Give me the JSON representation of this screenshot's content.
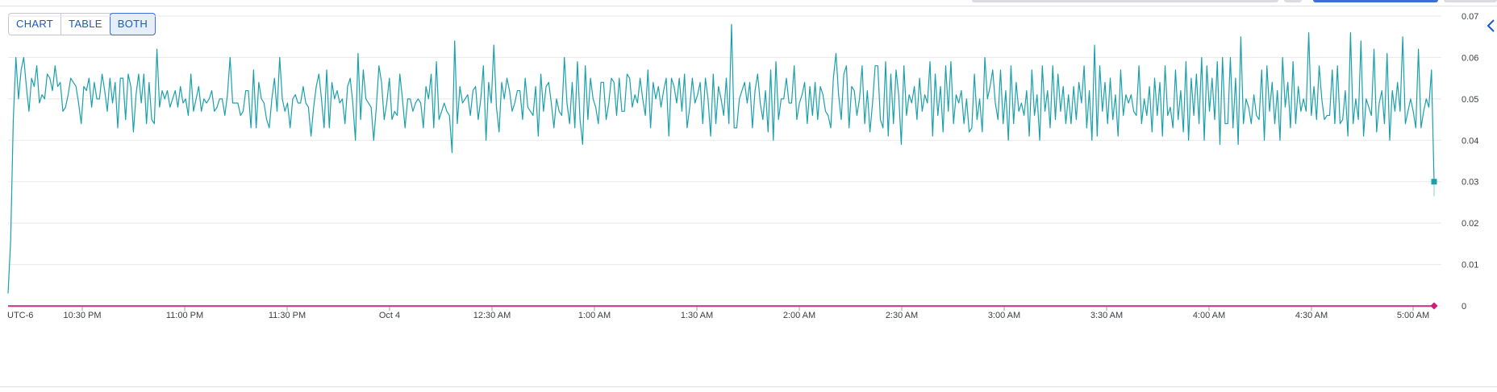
{
  "view_toggle": {
    "options": [
      "CHART",
      "TABLE",
      "BOTH"
    ],
    "selected": "BOTH"
  },
  "colors": {
    "series_primary": "#1aa0aa",
    "series_secondary": "#d01c7a",
    "grid": "#e8e8e8",
    "accent": "#1a57c8"
  },
  "icons": {
    "collapse": "chevron-left-icon"
  },
  "chart_data": {
    "type": "line",
    "timezone_label": "UTC-6",
    "x_tick_labels": [
      "UTC-6",
      "10:30 PM",
      "11:00 PM",
      "11:30 PM",
      "Oct 4",
      "12:30 AM",
      "1:00 AM",
      "1:30 AM",
      "2:00 AM",
      "2:30 AM",
      "3:00 AM",
      "3:30 AM",
      "4:00 AM",
      "4:30 AM",
      "5:00 AM"
    ],
    "y_ticks": [
      0,
      0.01,
      0.02,
      0.03,
      0.04,
      0.05,
      0.06,
      0.07
    ],
    "y_tick_labels": [
      "0",
      "0.01",
      "0.02",
      "0.03",
      "0.04",
      "0.05",
      "0.06",
      "0.07"
    ],
    "ylim": [
      0,
      0.07
    ],
    "grid": true,
    "axis_position": "right",
    "series": [
      {
        "values": [
          0.003,
          0.016,
          0.045,
          0.06,
          0.05,
          0.057,
          0.06,
          0.053,
          0.047,
          0.055,
          0.053,
          0.058,
          0.049,
          0.051,
          0.05,
          0.056,
          0.055,
          0.052,
          0.058,
          0.053,
          0.054,
          0.047,
          0.048,
          0.051,
          0.055,
          0.054,
          0.053,
          0.049,
          0.044,
          0.053,
          0.052,
          0.055,
          0.048,
          0.054,
          0.05,
          0.05,
          0.056,
          0.052,
          0.047,
          0.055,
          0.049,
          0.054,
          0.043,
          0.055,
          0.055,
          0.045,
          0.056,
          0.053,
          0.042,
          0.051,
          0.056,
          0.049,
          0.056,
          0.044,
          0.054,
          0.045,
          0.044,
          0.062,
          0.048,
          0.052,
          0.05,
          0.052,
          0.048,
          0.05,
          0.052,
          0.048,
          0.053,
          0.049,
          0.05,
          0.046,
          0.056,
          0.047,
          0.05,
          0.053,
          0.047,
          0.05,
          0.049,
          0.05,
          0.052,
          0.047,
          0.048,
          0.05,
          0.05,
          0.046,
          0.051,
          0.06,
          0.049,
          0.049,
          0.049,
          0.046,
          0.047,
          0.052,
          0.052,
          0.043,
          0.057,
          0.043,
          0.054,
          0.05,
          0.049,
          0.045,
          0.043,
          0.05,
          0.055,
          0.047,
          0.06,
          0.05,
          0.047,
          0.049,
          0.043,
          0.05,
          0.051,
          0.049,
          0.049,
          0.053,
          0.049,
          0.048,
          0.041,
          0.048,
          0.053,
          0.056,
          0.05,
          0.043,
          0.057,
          0.043,
          0.054,
          0.05,
          0.052,
          0.049,
          0.05,
          0.044,
          0.053,
          0.055,
          0.049,
          0.04,
          0.061,
          0.045,
          0.057,
          0.05,
          0.049,
          0.048,
          0.04,
          0.048,
          0.058,
          0.054,
          0.045,
          0.049,
          0.055,
          0.045,
          0.047,
          0.046,
          0.056,
          0.05,
          0.043,
          0.05,
          0.05,
          0.047,
          0.049,
          0.05,
          0.049,
          0.043,
          0.053,
          0.05,
          0.056,
          0.043,
          0.059,
          0.045,
          0.047,
          0.049,
          0.047,
          0.046,
          0.037,
          0.064,
          0.044,
          0.053,
          0.049,
          0.05,
          0.051,
          0.046,
          0.052,
          0.053,
          0.045,
          0.05,
          0.058,
          0.04,
          0.054,
          0.049,
          0.063,
          0.048,
          0.042,
          0.054,
          0.05,
          0.055,
          0.052,
          0.047,
          0.049,
          0.052,
          0.052,
          0.045,
          0.055,
          0.048,
          0.047,
          0.046,
          0.053,
          0.041,
          0.056,
          0.047,
          0.053,
          0.054,
          0.049,
          0.043,
          0.05,
          0.047,
          0.046,
          0.06,
          0.049,
          0.044,
          0.054,
          0.043,
          0.059,
          0.045,
          0.039,
          0.058,
          0.045,
          0.055,
          0.05,
          0.048,
          0.044,
          0.054,
          0.054,
          0.045,
          0.049,
          0.055,
          0.054,
          0.046,
          0.055,
          0.047,
          0.047,
          0.056,
          0.055,
          0.048,
          0.051,
          0.049,
          0.055,
          0.05,
          0.046,
          0.057,
          0.043,
          0.054,
          0.05,
          0.053,
          0.048,
          0.052,
          0.055,
          0.041,
          0.055,
          0.053,
          0.049,
          0.055,
          0.047,
          0.056,
          0.043,
          0.048,
          0.055,
          0.049,
          0.051,
          0.054,
          0.044,
          0.055,
          0.05,
          0.041,
          0.056,
          0.044,
          0.053,
          0.05,
          0.046,
          0.055,
          0.044,
          0.068,
          0.043,
          0.043,
          0.05,
          0.052,
          0.054,
          0.049,
          0.054,
          0.043,
          0.052,
          0.056,
          0.049,
          0.045,
          0.052,
          0.042,
          0.057,
          0.04,
          0.059,
          0.045,
          0.05,
          0.05,
          0.055,
          0.049,
          0.049,
          0.058,
          0.045,
          0.049,
          0.051,
          0.054,
          0.044,
          0.053,
          0.046,
          0.054,
          0.045,
          0.053,
          0.051,
          0.047,
          0.046,
          0.043,
          0.055,
          0.061,
          0.051,
          0.045,
          0.056,
          0.058,
          0.043,
          0.053,
          0.052,
          0.046,
          0.05,
          0.058,
          0.044,
          0.052,
          0.042,
          0.049,
          0.058,
          0.058,
          0.045,
          0.043,
          0.059,
          0.041,
          0.056,
          0.044,
          0.057,
          0.051,
          0.039,
          0.058,
          0.046,
          0.051,
          0.049,
          0.053,
          0.045,
          0.055,
          0.047,
          0.051,
          0.049,
          0.059,
          0.041,
          0.056,
          0.046,
          0.053,
          0.042,
          0.058,
          0.047,
          0.059,
          0.044,
          0.051,
          0.049,
          0.052,
          0.044,
          0.05,
          0.042,
          0.043,
          0.056,
          0.045,
          0.05,
          0.042,
          0.06,
          0.05,
          0.053,
          0.057,
          0.049,
          0.045,
          0.057,
          0.044,
          0.052,
          0.04,
          0.058,
          0.044,
          0.054,
          0.047,
          0.049,
          0.046,
          0.052,
          0.041,
          0.057,
          0.046,
          0.051,
          0.04,
          0.058,
          0.047,
          0.052,
          0.043,
          0.058,
          0.045,
          0.056,
          0.047,
          0.053,
          0.044,
          0.051,
          0.044,
          0.053,
          0.045,
          0.054,
          0.049,
          0.058,
          0.043,
          0.052,
          0.04,
          0.063,
          0.041,
          0.058,
          0.047,
          0.054,
          0.044,
          0.055,
          0.045,
          0.051,
          0.041,
          0.057,
          0.046,
          0.051,
          0.049,
          0.051,
          0.047,
          0.046,
          0.058,
          0.044,
          0.05,
          0.046,
          0.053,
          0.042,
          0.055,
          0.046,
          0.054,
          0.041,
          0.058,
          0.046,
          0.048,
          0.043,
          0.057,
          0.045,
          0.052,
          0.042,
          0.059,
          0.04,
          0.055,
          0.046,
          0.056,
          0.044,
          0.06,
          0.04,
          0.058,
          0.047,
          0.055,
          0.045,
          0.059,
          0.039,
          0.06,
          0.044,
          0.044,
          0.06,
          0.043,
          0.055,
          0.039,
          0.065,
          0.044,
          0.05,
          0.048,
          0.044,
          0.051,
          0.046,
          0.045,
          0.057,
          0.04,
          0.058,
          0.047,
          0.054,
          0.044,
          0.052,
          0.04,
          0.06,
          0.048,
          0.054,
          0.043,
          0.059,
          0.044,
          0.053,
          0.047,
          0.05,
          0.047,
          0.066,
          0.046,
          0.053,
          0.045,
          0.058,
          0.05,
          0.045,
          0.046,
          0.046,
          0.057,
          0.044,
          0.058,
          0.044,
          0.045,
          0.052,
          0.041,
          0.066,
          0.044,
          0.05,
          0.045,
          0.064,
          0.041,
          0.05,
          0.048,
          0.046,
          0.062,
          0.042,
          0.049,
          0.052,
          0.044,
          0.061,
          0.04,
          0.052,
          0.047,
          0.054,
          0.047,
          0.065,
          0.044,
          0.047,
          0.05,
          0.047,
          0.043,
          0.062,
          0.043,
          0.047,
          0.05,
          0.048,
          0.057,
          0.03
        ]
      },
      {
        "values": [
          0,
          0
        ]
      }
    ]
  }
}
